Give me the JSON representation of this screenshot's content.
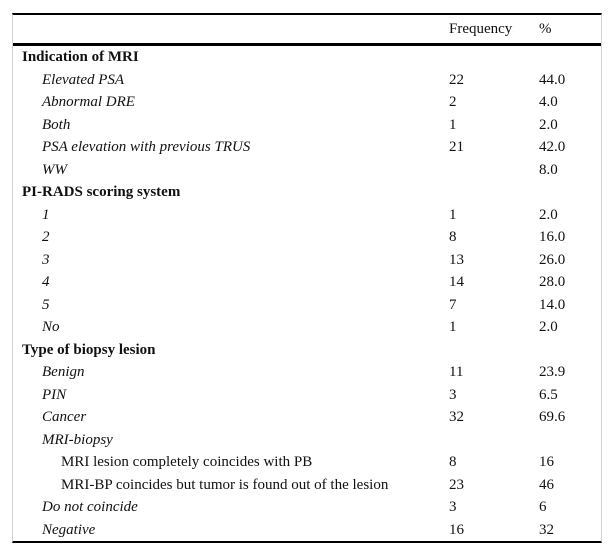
{
  "document": {
    "background_color": "#ffffff",
    "text_color": "#111111",
    "rule_color": "#000000",
    "side_frame_color": "#d2d2d2"
  },
  "table": {
    "columns": [
      "Frequency",
      "%"
    ],
    "rows": [
      {
        "label": "Indication of MRI",
        "level": "section",
        "frequency": "",
        "percent": ""
      },
      {
        "label": "Elevated PSA",
        "level": "item",
        "frequency": "22",
        "percent": "44.0"
      },
      {
        "label": "Abnormal DRE",
        "level": "item",
        "frequency": "2",
        "percent": "4.0"
      },
      {
        "label": "Both",
        "level": "item",
        "frequency": "1",
        "percent": "2.0"
      },
      {
        "label": "PSA elevation with previous TRUS",
        "level": "item",
        "frequency": "21",
        "percent": "42.0"
      },
      {
        "label": "WW",
        "level": "item",
        "frequency": "",
        "percent": "8.0"
      },
      {
        "label": "PI-RADS scoring system",
        "level": "section",
        "frequency": "",
        "percent": ""
      },
      {
        "label": "1",
        "level": "item",
        "frequency": "1",
        "percent": "2.0"
      },
      {
        "label": "2",
        "level": "item",
        "frequency": "8",
        "percent": "16.0"
      },
      {
        "label": "3",
        "level": "item",
        "frequency": "13",
        "percent": "26.0"
      },
      {
        "label": "4",
        "level": "item",
        "frequency": "14",
        "percent": "28.0"
      },
      {
        "label": "5",
        "level": "item",
        "frequency": "7",
        "percent": "14.0"
      },
      {
        "label": "No",
        "level": "item",
        "frequency": "1",
        "percent": "2.0"
      },
      {
        "label": "Type of biopsy lesion",
        "level": "section",
        "frequency": "",
        "percent": ""
      },
      {
        "label": "Benign",
        "level": "item",
        "frequency": "11",
        "percent": "23.9"
      },
      {
        "label": "PIN",
        "level": "item",
        "frequency": "3",
        "percent": "6.5"
      },
      {
        "label": "Cancer",
        "level": "item",
        "frequency": "32",
        "percent": "69.6"
      },
      {
        "label": "MRI-biopsy",
        "level": "item",
        "frequency": "",
        "percent": ""
      },
      {
        "label": "MRI lesion completely coincides with PB",
        "level": "subitem",
        "frequency": "8",
        "percent": "16"
      },
      {
        "label": "MRI-BP coincides but tumor is found out of the lesion",
        "level": "subitem",
        "frequency": "23",
        "percent": "46"
      },
      {
        "label": "Do not coincide",
        "level": "item",
        "frequency": "3",
        "percent": "6"
      },
      {
        "label": "Negative",
        "level": "item",
        "frequency": "16",
        "percent": "32"
      }
    ]
  }
}
